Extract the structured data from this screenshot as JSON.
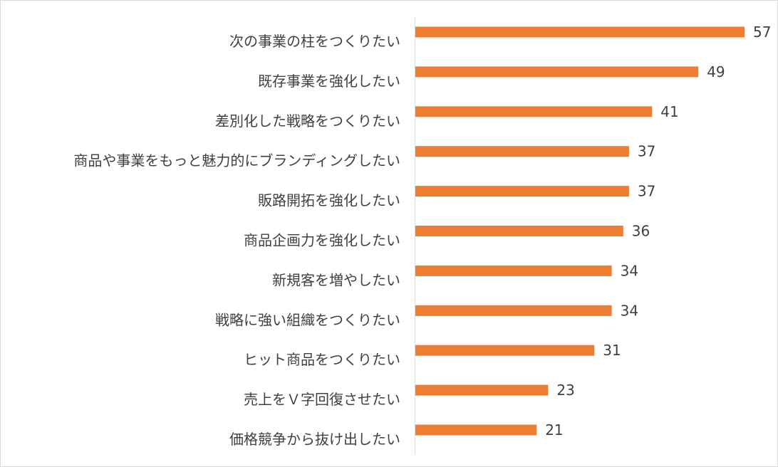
{
  "chart_data": {
    "type": "bar",
    "orientation": "horizontal",
    "categories": [
      "次の事業の柱をつくりたい",
      "既存事業を強化したい",
      "差別化した戦略をつくりたい",
      "商品や事業をもっと魅力的にブランディングしたい",
      "販路開拓を強化したい",
      "商品企画力を強化したい",
      "新規客を増やしたい",
      "戦略に強い組織をつくりたい",
      "ヒット商品をつくりたい",
      "売上をＶ字回復させたい",
      "価格競争から抜け出したい"
    ],
    "values": [
      57,
      49,
      41,
      37,
      37,
      36,
      34,
      34,
      31,
      23,
      21
    ],
    "title": "",
    "xlabel": "",
    "ylabel": "",
    "grid": false,
    "legend": "none",
    "data_labels": true,
    "colors": {
      "bar": "#ED7D31",
      "axis": "#D9D9D9",
      "text": "#404040"
    }
  }
}
